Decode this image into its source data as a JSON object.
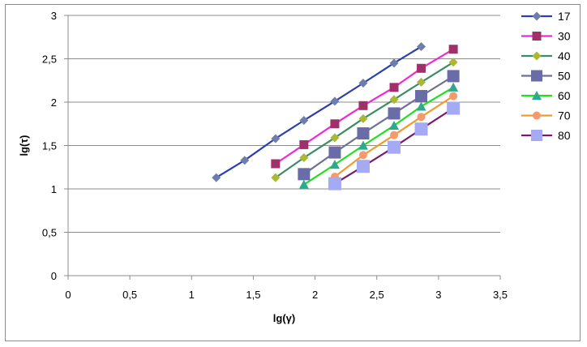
{
  "chart_data": {
    "type": "line",
    "xlabel": "lg(γ)",
    "ylabel": "lg(τ)",
    "xlim": [
      0,
      3.5
    ],
    "ylim": [
      0,
      3
    ],
    "xticks": [
      "0",
      "0,5",
      "1",
      "1,5",
      "2",
      "2,5",
      "3",
      "3,5"
    ],
    "yticks": [
      "0",
      "0,5",
      "1",
      "1,5",
      "2",
      "2,5",
      "3"
    ],
    "grid": "horizontal",
    "legend": "right",
    "series": [
      {
        "name": "17",
        "color": "#2b3fb0",
        "marker": "diamond",
        "x": [
          1.2,
          1.43,
          1.68,
          1.91,
          2.16,
          2.39,
          2.64,
          2.86
        ],
        "y": [
          1.13,
          1.33,
          1.58,
          1.79,
          2.01,
          2.22,
          2.45,
          2.64
        ]
      },
      {
        "name": "30",
        "color": "#f028d8",
        "marker": "square",
        "x": [
          1.68,
          1.91,
          2.16,
          2.39,
          2.64,
          2.86,
          3.12
        ],
        "y": [
          1.29,
          1.51,
          1.75,
          1.96,
          2.17,
          2.39,
          2.61
        ]
      },
      {
        "name": "40",
        "color": "#3c8c64",
        "marker": "diamond",
        "x": [
          1.68,
          1.91,
          2.16,
          2.39,
          2.64,
          2.86,
          3.12
        ],
        "y": [
          1.13,
          1.36,
          1.59,
          1.81,
          2.03,
          2.23,
          2.46
        ]
      },
      {
        "name": "50",
        "color": "#707090",
        "marker": "square",
        "x": [
          1.91,
          2.16,
          2.39,
          2.64,
          2.86,
          3.12
        ],
        "y": [
          1.17,
          1.42,
          1.64,
          1.87,
          2.07,
          2.3
        ]
      },
      {
        "name": "60",
        "color": "#1ee01e",
        "marker": "triangle",
        "x": [
          1.91,
          2.16,
          2.39,
          2.64,
          2.86,
          3.12
        ],
        "y": [
          1.05,
          1.28,
          1.5,
          1.73,
          1.95,
          2.17
        ]
      },
      {
        "name": "70",
        "color": "#f39a2a",
        "marker": "circle",
        "x": [
          2.16,
          2.39,
          2.64,
          2.86,
          3.12
        ],
        "y": [
          1.14,
          1.39,
          1.62,
          1.83,
          2.07
        ]
      },
      {
        "name": "80",
        "color": "#7a1a6e",
        "marker": "square",
        "x": [
          2.16,
          2.39,
          2.64,
          2.86,
          3.12
        ],
        "y": [
          1.06,
          1.26,
          1.48,
          1.69,
          1.93
        ]
      }
    ],
    "marker_colors": {
      "17": "#6e7eaa",
      "30": "#a0306a",
      "40": "#aab832",
      "50": "#6a6ca8",
      "60": "#2fa890",
      "70": "#f49a6e",
      "80": "#a4aaf4"
    }
  }
}
